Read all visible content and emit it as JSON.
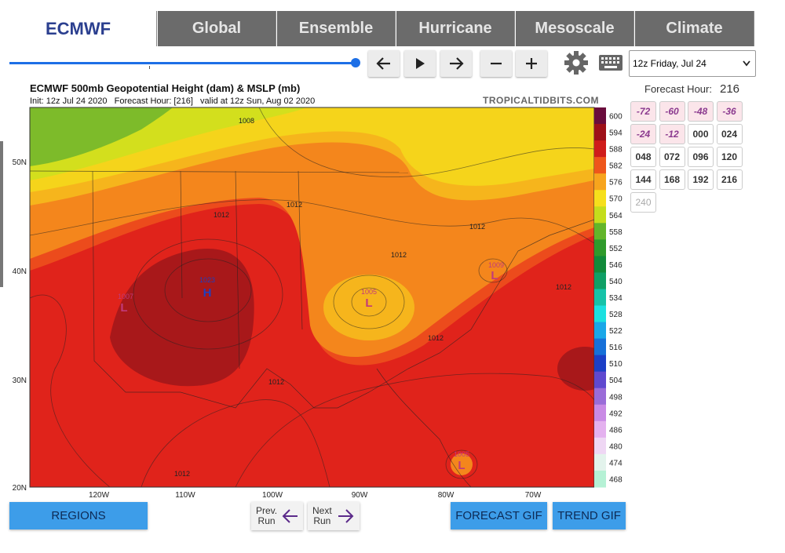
{
  "tabs": [
    "ECMWF",
    "Global",
    "Ensemble",
    "Hurricane",
    "Mesoscale",
    "Climate"
  ],
  "controls": {
    "run_select": "12z Friday, Jul 24"
  },
  "map": {
    "title": "ECMWF 500mb Geopotential Height (dam) & MSLP (mb)",
    "subtitle": "Init: 12z Jul 24 2020   Forecast Hour: [216]   valid at 12z Sun, Aug 02 2020",
    "watermark": "TROPICALTIDBITS.COM",
    "lat_labels": [
      "50N",
      "40N",
      "30N",
      "20N"
    ],
    "lon_labels": [
      "120W",
      "110W",
      "100W",
      "90W",
      "80W",
      "70W"
    ],
    "colorbar_labels": [
      600,
      594,
      588,
      582,
      576,
      570,
      564,
      558,
      552,
      546,
      540,
      534,
      528,
      522,
      516,
      510,
      504,
      498,
      492,
      486,
      480,
      474,
      468
    ],
    "labels": [
      "1008",
      "1012",
      "1012",
      "1023",
      "H",
      "1007",
      "L",
      "1005",
      "L",
      "1009",
      "L",
      "1012",
      "1012",
      "1012",
      "1012",
      "1012",
      "1012",
      "1005",
      "L"
    ]
  },
  "forecast_panel": {
    "label": "Forecast Hour:",
    "hour": "216",
    "hours": [
      "-72",
      "-60",
      "-48",
      "-36",
      "-24",
      "-12",
      "000",
      "024",
      "048",
      "072",
      "096",
      "120",
      "144",
      "168",
      "192",
      "216",
      "240"
    ]
  },
  "footer": {
    "regions": "REGIONS",
    "prev_run": [
      "Prev.",
      "Run"
    ],
    "next_run": [
      "Next",
      "Run"
    ],
    "forecast_gif": "FORECAST GIF",
    "trend_gif": "TREND GIF"
  }
}
